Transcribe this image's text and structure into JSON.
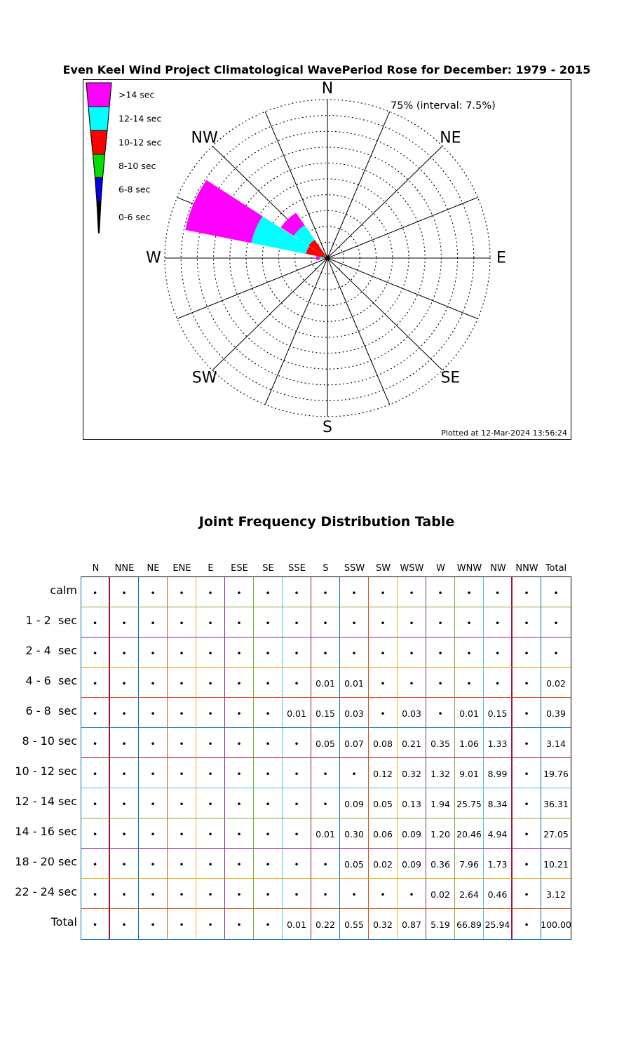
{
  "rose_panel": {
    "title": "Even Keel Wind Project Climatological WavePeriod Rose for December: 1979 - 2015",
    "annotation": "75% (interval: 7.5%)",
    "plotted_at": "Plotted at 12-Mar-2024 13:56:24",
    "compass_labels": [
      "N",
      "NE",
      "E",
      "SE",
      "S",
      "SW",
      "W",
      "NW"
    ],
    "legend": [
      {
        "label": ">14 sec",
        "color": "#FF00FF"
      },
      {
        "label": "12-14 sec",
        "color": "#00FFFF"
      },
      {
        "label": "10-12 sec",
        "color": "#FF0000"
      },
      {
        "label": "8-10 sec",
        "color": "#00DF00"
      },
      {
        "label": "6-8 sec",
        "color": "#0000E6"
      },
      {
        "label": "0-6 sec",
        "color": "#000000"
      }
    ]
  },
  "table_section": {
    "title": "Joint Frequency Distribution Table",
    "columns": [
      "N",
      "NNE",
      "NE",
      "ENE",
      "E",
      "ESE",
      "SE",
      "SSE",
      "S",
      "SSW",
      "SW",
      "WSW",
      "W",
      "WNW",
      "NW",
      "NNW",
      "Total"
    ],
    "row_labels": [
      "calm",
      "1 - 2  sec",
      "2 - 4  sec",
      "4 - 6  sec",
      "6 - 8  sec",
      "8 - 10 sec",
      "10 - 12 sec",
      "12 - 14 sec",
      "14 - 16 sec",
      "18 - 20 sec",
      "22 - 24 sec",
      "Total"
    ],
    "zero_symbol": "•",
    "grid_line_colors": {
      "vertical_after_col": [
        "#A2142F",
        "#0072BD",
        "#D95319",
        "#EDB120",
        "#7E2F8E",
        "#77AC30",
        "#4DBEEE",
        "#A2142F",
        "#0072BD",
        "#D95319",
        "#EDB120",
        "#7E2F8E",
        "#77AC30",
        "#4DBEEE",
        "#A2142F",
        "#0072BD"
      ],
      "horizontal_after_row": [
        "#77AC30",
        "#7E2F8E",
        "#EDB120",
        "#D95319",
        "#0072BD",
        "#A2142F",
        "#4DBEEE",
        "#77AC30",
        "#7E2F8E",
        "#EDB120",
        "#D95319"
      ],
      "thick_cols": [
        0,
        14
      ],
      "outer_top": "#000000",
      "outer_right": "#000000",
      "outer_left": "#0072BD",
      "outer_bottom": "#0072BD"
    }
  },
  "chart_data": {
    "type": "windrose",
    "title": "Even Keel Wind Project Climatological WavePeriod Rose for December: 1979 - 2015",
    "units": "percent_frequency",
    "ring_max": 75,
    "ring_interval": 7.5,
    "ring_count": 10,
    "directions": [
      "N",
      "NNE",
      "NE",
      "ENE",
      "E",
      "ESE",
      "SE",
      "SSE",
      "S",
      "SSW",
      "SW",
      "WSW",
      "W",
      "WNW",
      "NW",
      "NNW"
    ],
    "period_bins": [
      "calm",
      "1 - 2  sec",
      "2 - 4  sec",
      "4 - 6  sec",
      "6 - 8  sec",
      "8 - 10 sec",
      "10 - 12 sec",
      "12 - 14 sec",
      "14 - 16 sec",
      "18 - 20 sec",
      "22 - 24 sec"
    ],
    "matrix_columns": [
      "N",
      "NNE",
      "NE",
      "ENE",
      "E",
      "ESE",
      "SE",
      "SSE",
      "S",
      "SSW",
      "SW",
      "WSW",
      "W",
      "WNW",
      "NW",
      "NNW",
      "Total"
    ],
    "matrix": [
      [
        0,
        0,
        0,
        0,
        0,
        0,
        0,
        0,
        0,
        0,
        0,
        0,
        0,
        0,
        0,
        0,
        0
      ],
      [
        0,
        0,
        0,
        0,
        0,
        0,
        0,
        0,
        0,
        0,
        0,
        0,
        0,
        0,
        0,
        0,
        0
      ],
      [
        0,
        0,
        0,
        0,
        0,
        0,
        0,
        0,
        0,
        0,
        0,
        0,
        0,
        0,
        0,
        0,
        0
      ],
      [
        0,
        0,
        0,
        0,
        0,
        0,
        0,
        0,
        0.01,
        0.01,
        0,
        0,
        0,
        0,
        0,
        0,
        0.02
      ],
      [
        0,
        0,
        0,
        0,
        0,
        0,
        0,
        0.01,
        0.15,
        0.03,
        0,
        0.03,
        0,
        0.01,
        0.15,
        0,
        0.39
      ],
      [
        0,
        0,
        0,
        0,
        0,
        0,
        0,
        0,
        0.05,
        0.07,
        0.08,
        0.21,
        0.35,
        1.06,
        1.33,
        0,
        3.14
      ],
      [
        0,
        0,
        0,
        0,
        0,
        0,
        0,
        0,
        0,
        0,
        0.12,
        0.32,
        1.32,
        9.01,
        8.99,
        0,
        19.76
      ],
      [
        0,
        0,
        0,
        0,
        0,
        0,
        0,
        0,
        0,
        0.09,
        0.05,
        0.13,
        1.94,
        25.75,
        8.34,
        0,
        36.31
      ],
      [
        0,
        0,
        0,
        0,
        0,
        0,
        0,
        0,
        0.01,
        0.3,
        0.06,
        0.09,
        1.2,
        20.46,
        4.94,
        0,
        27.05
      ],
      [
        0,
        0,
        0,
        0,
        0,
        0,
        0,
        0,
        0,
        0.05,
        0.02,
        0.09,
        0.36,
        7.96,
        1.73,
        0,
        10.21
      ],
      [
        0,
        0,
        0,
        0,
        0,
        0,
        0,
        0,
        0,
        0,
        0,
        0,
        0.02,
        2.64,
        0.46,
        0,
        3.12
      ]
    ],
    "totals_row": [
      0,
      0,
      0,
      0,
      0,
      0,
      0,
      0.01,
      0.22,
      0.55,
      0.32,
      0.87,
      5.19,
      66.89,
      25.94,
      0,
      100.0
    ],
    "bands": [
      {
        "label": "0-6 sec",
        "color": "#000000",
        "bins": [
          "calm",
          "1 - 2  sec",
          "2 - 4  sec",
          "4 - 6  sec"
        ]
      },
      {
        "label": "6-8 sec",
        "color": "#0000E6",
        "bins": [
          "6 - 8  sec"
        ]
      },
      {
        "label": "8-10 sec",
        "color": "#00DF00",
        "bins": [
          "8 - 10 sec"
        ]
      },
      {
        "label": "10-12 sec",
        "color": "#FF0000",
        "bins": [
          "10 - 12 sec"
        ]
      },
      {
        "label": "12-14 sec",
        "color": "#00FFFF",
        "bins": [
          "12 - 14 sec"
        ]
      },
      {
        "label": ">14 sec",
        "color": "#FF00FF",
        "bins": [
          "14 - 16 sec",
          "18 - 20 sec",
          "22 - 24 sec"
        ]
      }
    ]
  }
}
